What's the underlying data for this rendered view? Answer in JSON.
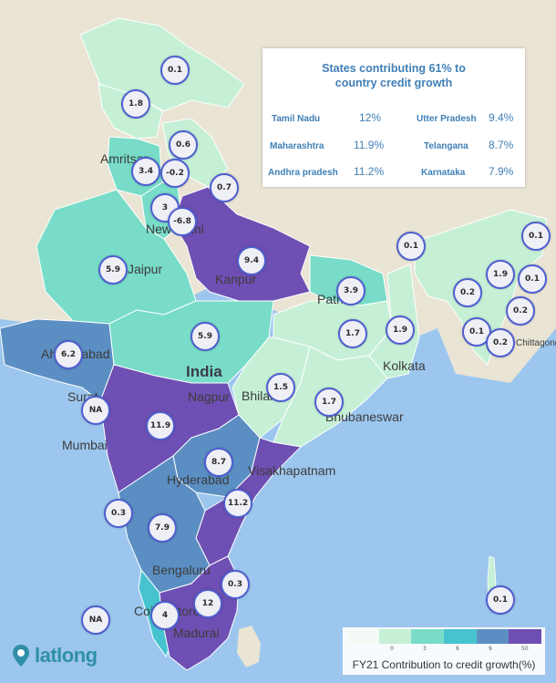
{
  "infobox": {
    "title_line1": "States contributing 61% to",
    "title_line2": "country credit growth",
    "rows": [
      {
        "state": "Tamil Nadu",
        "pct": "12%"
      },
      {
        "state": "Utter Pradesh",
        "pct": "9.4%"
      },
      {
        "state": "Maharashtra",
        "pct": "11.9%"
      },
      {
        "state": "Telangana",
        "pct": "8.7%"
      },
      {
        "state": "Andhra pradesh",
        "pct": "11.2%"
      },
      {
        "state": "Karnataka",
        "pct": "7.9%"
      }
    ]
  },
  "states": [
    {
      "name": "Jammu & Kashmir",
      "value": "0.1"
    },
    {
      "name": "Himachal Pradesh",
      "value": "1.8"
    },
    {
      "name": "Uttarakhand",
      "value": "0.6"
    },
    {
      "name": "Punjab",
      "value": "3.4"
    },
    {
      "name": "Chandigarh",
      "value": "-0.2"
    },
    {
      "name": "Nepal",
      "value": "0.7"
    },
    {
      "name": "Haryana",
      "value": "3"
    },
    {
      "name": "Delhi",
      "value": "-6.8"
    },
    {
      "name": "Rajasthan",
      "value": "5.9"
    },
    {
      "name": "Uttar Pradesh",
      "value": "9.4"
    },
    {
      "name": "Bihar",
      "value": "3.9"
    },
    {
      "name": "Sikkim",
      "value": "0.1"
    },
    {
      "name": "Arunachal Pradesh",
      "value": "0.1"
    },
    {
      "name": "Assam",
      "value": "1.9"
    },
    {
      "name": "Nagaland",
      "value": "0.1"
    },
    {
      "name": "Meghalaya",
      "value": "0.2"
    },
    {
      "name": "Manipur",
      "value": "0.2"
    },
    {
      "name": "Tripura",
      "value": "0.1"
    },
    {
      "name": "Mizoram",
      "value": "0.2"
    },
    {
      "name": "Jharkhand",
      "value": "1.7"
    },
    {
      "name": "West Bengal",
      "value": "1.9"
    },
    {
      "name": "Madhya Pradesh",
      "value": "5.9"
    },
    {
      "name": "Gujarat",
      "value": "6.2"
    },
    {
      "name": "Dadra & Nagar Haveli",
      "value": "NA"
    },
    {
      "name": "Chhattisgarh",
      "value": "1.5"
    },
    {
      "name": "Odisha",
      "value": "1.7"
    },
    {
      "name": "Maharashtra",
      "value": "11.9"
    },
    {
      "name": "Telangana",
      "value": "8.7"
    },
    {
      "name": "Andhra Pradesh",
      "value": "11.2"
    },
    {
      "name": "Goa",
      "value": "0.3"
    },
    {
      "name": "Karnataka",
      "value": "7.9"
    },
    {
      "name": "Puducherry",
      "value": "0.3"
    },
    {
      "name": "Tamil Nadu",
      "value": "12"
    },
    {
      "name": "Kerala",
      "value": "4"
    },
    {
      "name": "Lakshadweep",
      "value": "NA"
    },
    {
      "name": "Andaman & Nicobar",
      "value": "0.1"
    }
  ],
  "cities": [
    "Amritsar",
    "New Delhi",
    "Jaipur",
    "Kanpur",
    "Patna",
    "Ahmedabad",
    "India",
    "Surat",
    "Nagpur",
    "Bhilai",
    "Kolkata",
    "Bhubaneswar",
    "Mumbai",
    "Hyderabad",
    "Visakhapatnam",
    "Bengaluru",
    "Coimbatore",
    "Madurai",
    "Chittagong"
  ],
  "legend": {
    "caption": "FY21 Contribution to credit growth(%)",
    "ticks": [
      "0",
      "3",
      "6",
      "9",
      "50"
    ],
    "colors": [
      "#ffffff",
      "#c5f0d6",
      "#78dcc8",
      "#46c3cf",
      "#5b8fc3",
      "#6e4fb3"
    ]
  },
  "logo": {
    "text": "latlong",
    "icon": "map-pin-icon"
  },
  "colors": {
    "ocean": "#9cc6ee",
    "land": "#e9e4d4",
    "bubble_border": "#4f5fd0",
    "accent": "#3f7fb6"
  }
}
